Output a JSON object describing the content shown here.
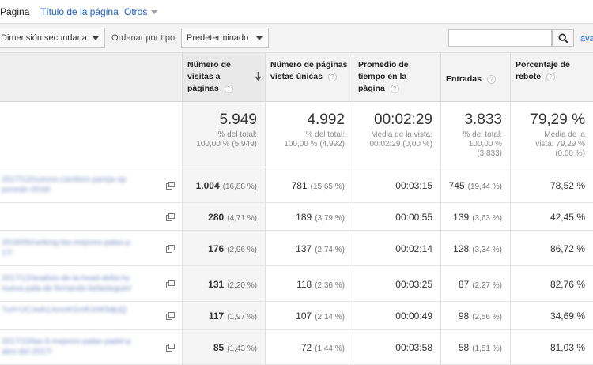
{
  "tabs": {
    "active": "Página",
    "title": "Título de la página",
    "others": "Otros"
  },
  "toolbar": {
    "secondary_dimension": "Dimensión secundaria",
    "sort_label": "Ordenar por tipo:",
    "sort_value": "Predeterminado",
    "search_placeholder": "",
    "advanced_link": "avanzado"
  },
  "headers": {
    "pageviews": "Número de visitas a páginas",
    "unique_pageviews": "Número de páginas vistas únicas",
    "avg_time": "Promedio de tiempo en la página",
    "entrances": "Entradas",
    "bounce_rate": "Porcentaje de rebote",
    "help": "?"
  },
  "totals": {
    "pageviews": {
      "value": "5.949",
      "l1": "% del total:",
      "l2": "100,00 % (5.949)"
    },
    "unique": {
      "value": "4.992",
      "l1": "% del total:",
      "l2": "100,00 % (4.992)"
    },
    "avg_time": {
      "value": "00:02:29",
      "l1": "Media de la vista:",
      "l2": "00:02:29 (0,00 %)"
    },
    "entrances": {
      "value": "3.833",
      "l1": "% del total:",
      "l2": "100,00 %",
      "l3": "(3.833)"
    },
    "bounce": {
      "value": "79,29 %",
      "l1": "Media de la",
      "l2": "vista: 79,29 %",
      "l3": "(0,00 %)"
    }
  },
  "rows": [
    {
      "page1": "2017/12/nuevos-cambios-pareja-op",
      "page2": "ponedo-2018/",
      "pv": "1.004",
      "pv_pct": "(16,88 %)",
      "upv": "781",
      "upv_pct": "(15,65 %)",
      "time": "00:03:15",
      "ent": "745",
      "ent_pct": "(19,44 %)",
      "bounce": "78,52 %"
    },
    {
      "page1": "",
      "page2": "",
      "pv": "280",
      "pv_pct": "(4,71 %)",
      "upv": "189",
      "upv_pct": "(3,79 %)",
      "time": "00:00:55",
      "ent": "139",
      "ent_pct": "(3,63 %)",
      "bounce": "42,45 %"
    },
    {
      "page1": "2018/05/ranking-las-mejores-palas-p",
      "page2": "17/",
      "pv": "176",
      "pv_pct": "(2,96 %)",
      "upv": "137",
      "upv_pct": "(2,74 %)",
      "time": "00:02:14",
      "ent": "128",
      "ent_pct": "(3,34 %)",
      "bounce": "86,72 %"
    },
    {
      "page1": "2017/12/analisis-de-la-head-delta-hy",
      "page2": "nueva-pala-de-fernando-belasteguin/",
      "pv": "131",
      "pv_pct": "(2,20 %)",
      "upv": "118",
      "upv_pct": "(2,36 %)",
      "time": "00:03:25",
      "ent": "87",
      "ent_pct": "(2,27 %)",
      "bounce": "82,76 %"
    },
    {
      "page1": "?url=UCJwA1JoncKGmfUzW3djcjQ",
      "page2": "",
      "pv": "117",
      "pv_pct": "(1,97 %)",
      "upv": "107",
      "upv_pct": "(2,14 %)",
      "time": "00:00:49",
      "ent": "98",
      "ent_pct": "(2,56 %)",
      "bounce": "34,69 %"
    },
    {
      "page1": "2017/10/las-5-mejores-palas-padel-p",
      "page2": "ales-del-2017/",
      "pv": "85",
      "pv_pct": "(1,43 %)",
      "upv": "72",
      "upv_pct": "(1,44 %)",
      "time": "00:03:58",
      "ent": "58",
      "ent_pct": "(1,51 %)",
      "bounce": "81,03 %"
    }
  ]
}
